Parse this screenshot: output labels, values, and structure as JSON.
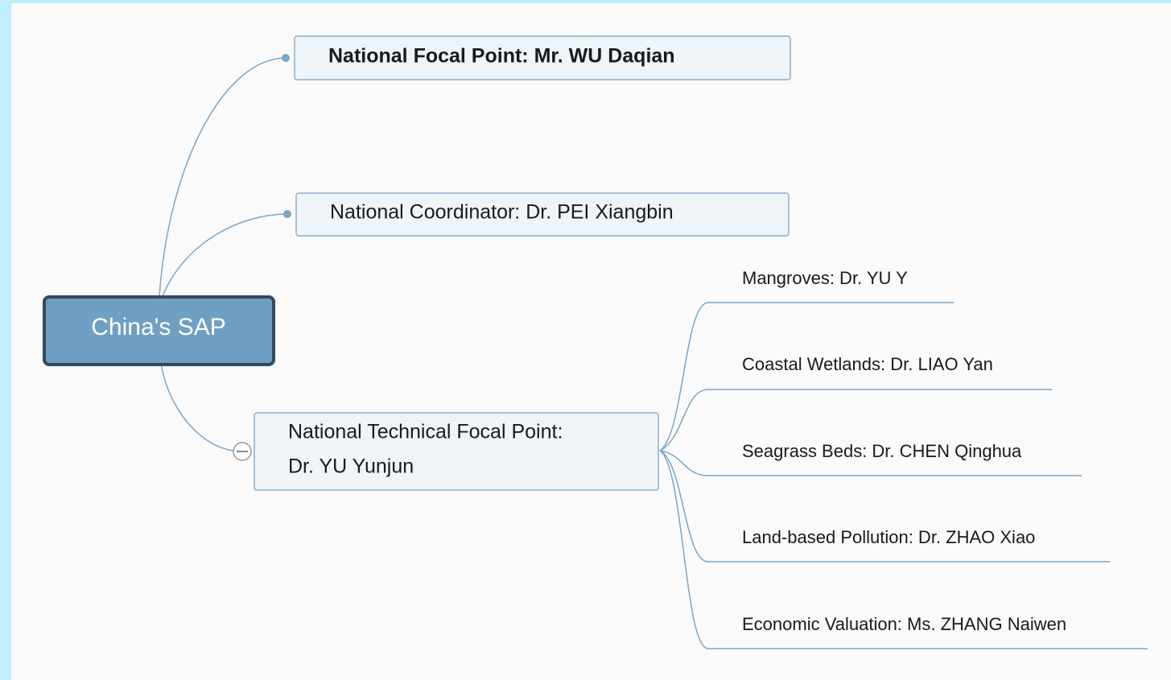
{
  "root": {
    "label": "China's SAP"
  },
  "branches": [
    {
      "label": "National Focal Point: Mr. WU Daqian"
    },
    {
      "label": "National Coordinator: Dr. PEI Xiangbin"
    },
    {
      "label_lines": [
        "National Technical Focal Point:",
        "Dr. YU Yunjun"
      ],
      "children": [
        {
          "label": "Mangroves: Dr. YU Y"
        },
        {
          "label": "Coastal Wetlands: Dr. LIAO Yan"
        },
        {
          "label": "Seagrass Beds: Dr. CHEN Qinghua"
        },
        {
          "label": "Land-based Pollution: Dr. ZHAO Xiao"
        },
        {
          "label": "Economic Valuation: Ms. ZHANG Naiwen"
        }
      ]
    }
  ]
}
